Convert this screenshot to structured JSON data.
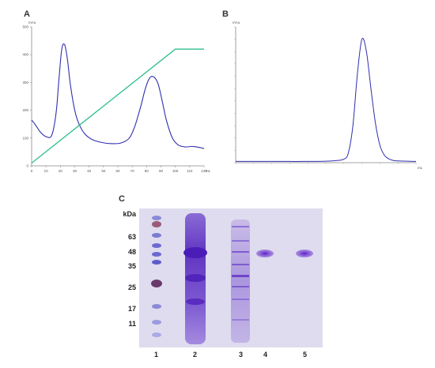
{
  "panels": {
    "a_label": "A",
    "b_label": "B",
    "c_label": "C"
  },
  "colors": {
    "trace": "#2f2fb0",
    "gradient": "#2ec08a",
    "gel_background": "#dcdcec",
    "band": "#6a3fc8"
  },
  "chart_data": [
    {
      "type": "line",
      "panel": "A",
      "ylabel": "mAu",
      "xlabel": "mL",
      "xlim": [
        0,
        120
      ],
      "ylim": [
        0,
        500
      ],
      "x_ticks": [
        "0",
        "10",
        "20",
        "30",
        "40",
        "50",
        "60",
        "70",
        "80",
        "90",
        "100",
        "110",
        "120"
      ],
      "y_ticks": [
        "0",
        "100",
        "200",
        "300",
        "400",
        "500"
      ],
      "grid": false,
      "series": [
        {
          "x": [
            0,
            3,
            6,
            10,
            14,
            17,
            19,
            21,
            23,
            25,
            27,
            30,
            33,
            37,
            42,
            48,
            55,
            62,
            68,
            72,
            76,
            79,
            82,
            85,
            88,
            91,
            94,
            98,
            102,
            107,
            112,
            117,
            120
          ],
          "values": [
            165,
            145,
            122,
            105,
            110,
            190,
            310,
            420,
            435,
            380,
            290,
            200,
            150,
            115,
            95,
            85,
            80,
            82,
            100,
            145,
            215,
            275,
            315,
            320,
            295,
            230,
            160,
            100,
            75,
            68,
            70,
            66,
            62
          ]
        },
        {
          "x": [
            0,
            100,
            120
          ],
          "values": [
            10,
            420,
            420
          ]
        }
      ]
    },
    {
      "type": "line",
      "panel": "B",
      "ylabel": "mAu",
      "xlabel": "mL",
      "xlim": [
        0,
        40
      ],
      "ylim": [
        0,
        550
      ],
      "grid": false,
      "series": [
        {
          "x": [
            0,
            5,
            10,
            15,
            20,
            22,
            24,
            25,
            26,
            27,
            28,
            29,
            30,
            31,
            32,
            33,
            34,
            35,
            36,
            38,
            40
          ],
          "values": [
            5,
            5,
            5,
            5,
            6,
            8,
            14,
            40,
            150,
            360,
            500,
            450,
            300,
            160,
            70,
            30,
            15,
            9,
            7,
            6,
            5
          ]
        }
      ]
    }
  ],
  "gel": {
    "unit_label": "kDa",
    "markers": [
      "63",
      "48",
      "35",
      "25",
      "17",
      "11"
    ],
    "lanes": [
      "1",
      "2",
      "3",
      "4",
      "5"
    ]
  }
}
